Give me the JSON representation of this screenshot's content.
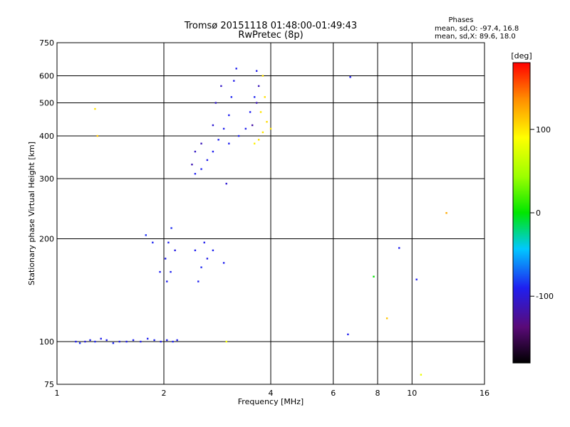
{
  "figure": {
    "title": "Tromsø 20151118 01:48:00-01:49:43",
    "subtitle": "RwPretec (8p)",
    "phases": {
      "heading": "Phases",
      "line_o": "mean, sd,O: -97.4, 16.8",
      "line_x": "mean, sd,X:  89.6, 18.0"
    }
  },
  "chart_data": {
    "type": "scatter",
    "title": "Tromsø 20151118 01:48:00-01:49:43",
    "subtitle": "RwPretec (8p)",
    "xlabel": "Frequency [MHz]",
    "ylabel": "Stationary phase Virtual Height [km]",
    "xscale": "log",
    "yscale": "log",
    "xlim": [
      1,
      16
    ],
    "ylim": [
      75,
      750
    ],
    "x_ticks": [
      1,
      2,
      4,
      6,
      8,
      10,
      16
    ],
    "x_tick_labels": [
      "1",
      "2",
      "4",
      "6",
      "8",
      "10",
      "16"
    ],
    "y_ticks": [
      75,
      100,
      200,
      300,
      400,
      500,
      600,
      750
    ],
    "y_tick_labels": [
      "75",
      "100",
      "200",
      "300",
      "400",
      "500",
      "600",
      "750"
    ],
    "grid": true,
    "colorbar": {
      "label": "[deg]",
      "range": [
        -180,
        180
      ],
      "ticks": [
        100,
        0,
        -100
      ],
      "tick_labels": [
        "100",
        "0",
        "-100"
      ]
    },
    "series": [
      {
        "points": [
          [
            1.13,
            100,
            -100
          ],
          [
            1.16,
            99,
            -95
          ],
          [
            1.2,
            100,
            -105
          ],
          [
            1.24,
            101,
            -100
          ],
          [
            1.28,
            100,
            -98
          ],
          [
            1.33,
            102,
            -102
          ],
          [
            1.38,
            101,
            -100
          ],
          [
            1.44,
            99,
            -97
          ],
          [
            1.5,
            100,
            -103
          ],
          [
            1.57,
            100,
            -100
          ],
          [
            1.64,
            101,
            -99
          ],
          [
            1.72,
            100,
            -101
          ],
          [
            1.8,
            102,
            -100
          ],
          [
            1.88,
            101,
            -98
          ],
          [
            1.96,
            100,
            -102
          ],
          [
            2.04,
            101,
            -100
          ],
          [
            2.12,
            100,
            -99
          ],
          [
            2.18,
            101,
            -101
          ],
          [
            1.78,
            205,
            -95
          ],
          [
            1.86,
            195,
            -98
          ],
          [
            1.95,
            160,
            -100
          ],
          [
            2.02,
            175,
            -102
          ],
          [
            2.06,
            195,
            -100
          ],
          [
            2.1,
            215,
            -96
          ],
          [
            2.15,
            185,
            -104
          ],
          [
            2.04,
            150,
            -101
          ],
          [
            2.09,
            160,
            -99
          ],
          [
            2.45,
            185,
            -100
          ],
          [
            2.55,
            165,
            -97
          ],
          [
            2.65,
            175,
            -103
          ],
          [
            2.5,
            150,
            -100
          ],
          [
            2.6,
            195,
            -101
          ],
          [
            2.75,
            185,
            -99
          ],
          [
            2.95,
            170,
            -100
          ],
          [
            2.45,
            310,
            -100
          ],
          [
            2.55,
            320,
            -98
          ],
          [
            2.65,
            340,
            -102
          ],
          [
            2.75,
            360,
            -100
          ],
          [
            2.85,
            390,
            -99
          ],
          [
            2.95,
            420,
            -101
          ],
          [
            3.05,
            460,
            -100
          ],
          [
            3.1,
            520,
            -98
          ],
          [
            3.15,
            580,
            -102
          ],
          [
            3.2,
            630,
            -100
          ],
          [
            3.05,
            380,
            -100
          ],
          [
            3.25,
            400,
            -99
          ],
          [
            3.4,
            420,
            -101
          ],
          [
            3.5,
            470,
            -100
          ],
          [
            3.6,
            520,
            -98
          ],
          [
            3.65,
            620,
            -102
          ],
          [
            2.4,
            330,
            -120
          ],
          [
            2.45,
            360,
            -115
          ],
          [
            2.55,
            380,
            -118
          ],
          [
            2.75,
            430,
            -110
          ],
          [
            2.8,
            500,
            -112
          ],
          [
            2.9,
            560,
            -114
          ],
          [
            3.55,
            430,
            -125
          ],
          [
            3.65,
            500,
            -120
          ],
          [
            3.7,
            560,
            -118
          ],
          [
            3.7,
            390,
            110
          ],
          [
            3.8,
            410,
            108
          ],
          [
            3.9,
            440,
            112
          ],
          [
            4.0,
            420,
            110
          ],
          [
            3.75,
            470,
            109
          ],
          [
            3.85,
            520,
            111
          ],
          [
            3.8,
            600,
            110
          ],
          [
            3.6,
            380,
            105
          ],
          [
            6.6,
            105,
            -100
          ],
          [
            6.7,
            595,
            -100
          ],
          [
            9.2,
            188,
            -100
          ],
          [
            10.3,
            152,
            -100
          ],
          [
            7.8,
            155,
            0
          ],
          [
            8.5,
            117,
            120
          ],
          [
            12.5,
            238,
            130
          ],
          [
            10.6,
            80,
            90
          ],
          [
            3.0,
            100,
            95
          ],
          [
            3.0,
            290,
            -110
          ],
          [
            1.28,
            480,
            110
          ],
          [
            1.3,
            400,
            120
          ]
        ]
      }
    ]
  }
}
